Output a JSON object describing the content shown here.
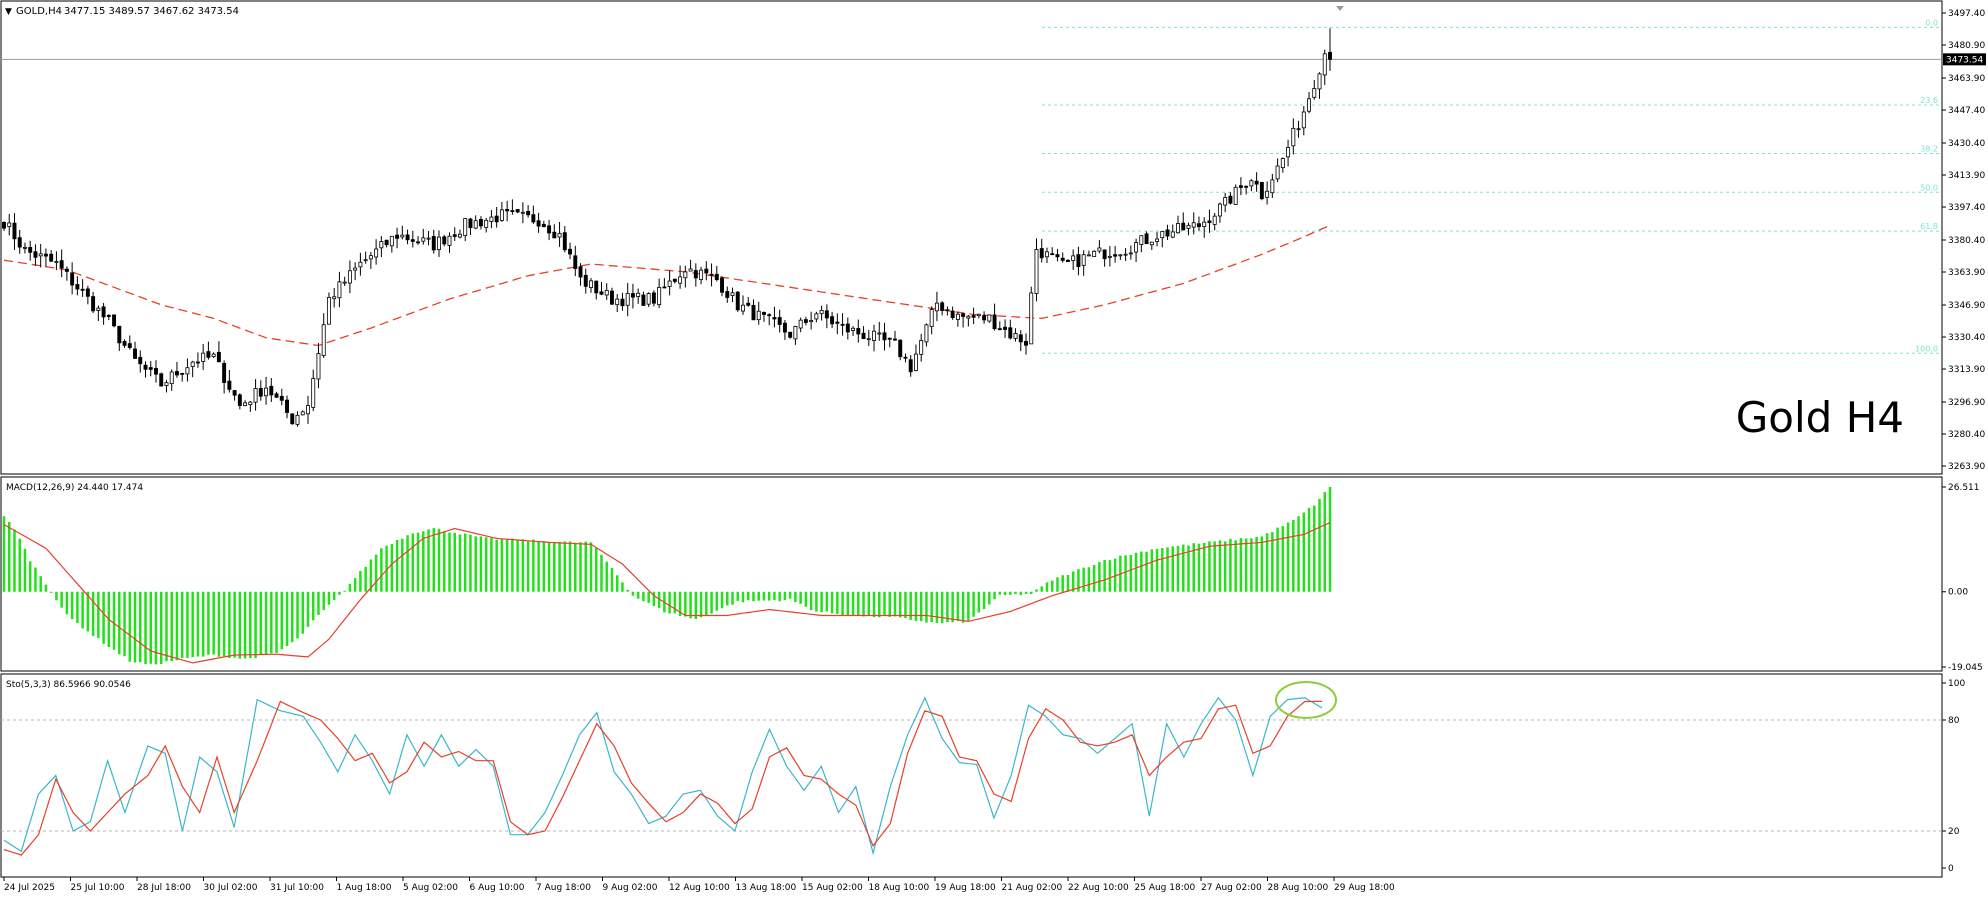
{
  "header": {
    "symbol_label": "GOLD,H4",
    "ohlc_label": "3477.15 3489.57 3467.62 3473.54",
    "watermark": "Gold H4"
  },
  "colors": {
    "bull_body": "#ffffff",
    "bear_body": "#000000",
    "candle_outline": "#000000",
    "ma_line": "#e8402a",
    "fib_line": "#7fe3cf",
    "macd_hist": "#22e01a",
    "macd_signal": "#e8402a",
    "stoch_main": "#3bb6c9",
    "stoch_signal": "#e8402a",
    "stoch_level": "#b5b5b5",
    "highlight_ellipse": "#8fcc3a",
    "grid_border": "#000000",
    "price_tag_bg": "#000000",
    "price_tag_fg": "#ffffff"
  },
  "chart_data": [
    {
      "type": "candlestick",
      "panel": "price",
      "title": "GOLD,H4",
      "ylim": [
        3263.9,
        3500.0
      ],
      "y_ticks": [
        "3497.40",
        "3480.90",
        "3463.90",
        "3447.40",
        "3430.40",
        "3413.90",
        "3397.40",
        "3380.40",
        "3363.90",
        "3346.90",
        "3330.40",
        "3313.90",
        "3296.90",
        "3280.40",
        "3263.90"
      ],
      "current_price_label": "3473.54",
      "current_price": 3473.54,
      "last_bar": {
        "open": 3477.15,
        "high": 3489.57,
        "low": 3467.62,
        "close": 3473.54
      },
      "moving_average_style": "dashed",
      "fib_levels": [
        {
          "label": "0.0",
          "price": 3490.0
        },
        {
          "label": "23.6",
          "price": 3450.0
        },
        {
          "label": "38.2",
          "price": 3425.0
        },
        {
          "label": "50.0",
          "price": 3405.0
        },
        {
          "label": "61.8",
          "price": 3385.0
        },
        {
          "label": "100.0",
          "price": 3322.0
        }
      ],
      "close_keypoints": [
        [
          0,
          3390
        ],
        [
          4,
          3375
        ],
        [
          10,
          3368
        ],
        [
          20,
          3338
        ],
        [
          25,
          3318
        ],
        [
          30,
          3306
        ],
        [
          36,
          3318
        ],
        [
          40,
          3320
        ],
        [
          45,
          3295
        ],
        [
          50,
          3305
        ],
        [
          55,
          3288
        ],
        [
          58,
          3296
        ],
        [
          62,
          3350
        ],
        [
          68,
          3368
        ],
        [
          75,
          3383
        ],
        [
          82,
          3378
        ],
        [
          88,
          3388
        ],
        [
          95,
          3393
        ],
        [
          102,
          3391
        ],
        [
          106,
          3383
        ],
        [
          110,
          3360
        ],
        [
          116,
          3350
        ],
        [
          124,
          3350
        ],
        [
          130,
          3366
        ],
        [
          136,
          3360
        ],
        [
          140,
          3347
        ],
        [
          146,
          3338
        ],
        [
          150,
          3332
        ],
        [
          155,
          3343
        ],
        [
          160,
          3335
        ],
        [
          166,
          3330
        ],
        [
          170,
          3326
        ],
        [
          173,
          3315
        ],
        [
          178,
          3348
        ],
        [
          182,
          3341
        ],
        [
          188,
          3340
        ],
        [
          192,
          3332
        ],
        [
          195,
          3328
        ],
        [
          197,
          3376
        ],
        [
          202,
          3367
        ],
        [
          208,
          3373
        ],
        [
          214,
          3376
        ],
        [
          220,
          3383
        ],
        [
          228,
          3388
        ],
        [
          233,
          3399
        ],
        [
          238,
          3413
        ],
        [
          240,
          3404
        ],
        [
          244,
          3422
        ],
        [
          248,
          3447
        ],
        [
          250,
          3462
        ],
        [
          252,
          3477
        ],
        [
          253,
          3473.54
        ]
      ],
      "ma_keypoints": [
        [
          0,
          3370
        ],
        [
          12,
          3365
        ],
        [
          30,
          3347
        ],
        [
          40,
          3340
        ],
        [
          50,
          3330
        ],
        [
          60,
          3326
        ],
        [
          70,
          3335
        ],
        [
          85,
          3350
        ],
        [
          100,
          3362
        ],
        [
          112,
          3368
        ],
        [
          130,
          3364
        ],
        [
          150,
          3356
        ],
        [
          170,
          3348
        ],
        [
          185,
          3342
        ],
        [
          198,
          3340
        ],
        [
          210,
          3347
        ],
        [
          225,
          3358
        ],
        [
          240,
          3373
        ],
        [
          248,
          3382
        ],
        [
          253,
          3388
        ]
      ]
    },
    {
      "type": "histogram",
      "panel": "macd",
      "title": "MACD(12,26,9) 24.440 17.474",
      "params": "12,26,9",
      "current_macd": 24.44,
      "current_signal": 17.474,
      "ylim": [
        -19.045,
        26.511
      ],
      "y_ticks": [
        "26.511",
        "0.00",
        "-19.045"
      ],
      "hist_keypoints": [
        [
          0,
          19
        ],
        [
          2,
          16
        ],
        [
          5,
          8
        ],
        [
          8,
          2
        ],
        [
          12,
          -6
        ],
        [
          18,
          -12
        ],
        [
          24,
          -17.5
        ],
        [
          28,
          -18.5
        ],
        [
          34,
          -17
        ],
        [
          40,
          -16
        ],
        [
          46,
          -17
        ],
        [
          52,
          -15.5
        ],
        [
          56,
          -12
        ],
        [
          60,
          -6
        ],
        [
          64,
          -1
        ],
        [
          68,
          5
        ],
        [
          72,
          11
        ],
        [
          78,
          15
        ],
        [
          82,
          16
        ],
        [
          86,
          15
        ],
        [
          92,
          13.5
        ],
        [
          100,
          13
        ],
        [
          108,
          12.5
        ],
        [
          112,
          12.5
        ],
        [
          116,
          6
        ],
        [
          120,
          -1
        ],
        [
          126,
          -5
        ],
        [
          132,
          -7
        ],
        [
          140,
          -2.5
        ],
        [
          150,
          -2
        ],
        [
          155,
          -5
        ],
        [
          162,
          -6
        ],
        [
          170,
          -6.5
        ],
        [
          178,
          -8
        ],
        [
          184,
          -7.5
        ],
        [
          190,
          -1
        ],
        [
          196,
          -0.5
        ],
        [
          200,
          3
        ],
        [
          210,
          8
        ],
        [
          220,
          11
        ],
        [
          230,
          12.5
        ],
        [
          240,
          14
        ],
        [
          246,
          18
        ],
        [
          250,
          22
        ],
        [
          253,
          26.5
        ]
      ],
      "signal_keypoints": [
        [
          0,
          17
        ],
        [
          8,
          11
        ],
        [
          14,
          2
        ],
        [
          20,
          -7
        ],
        [
          28,
          -15
        ],
        [
          36,
          -18
        ],
        [
          44,
          -16
        ],
        [
          52,
          -15.8
        ],
        [
          58,
          -16.5
        ],
        [
          62,
          -12
        ],
        [
          68,
          -2
        ],
        [
          74,
          7
        ],
        [
          80,
          13.5
        ],
        [
          86,
          16
        ],
        [
          94,
          13.5
        ],
        [
          104,
          12.5
        ],
        [
          112,
          12
        ],
        [
          118,
          7
        ],
        [
          124,
          -1
        ],
        [
          130,
          -6
        ],
        [
          138,
          -6
        ],
        [
          146,
          -4.5
        ],
        [
          156,
          -6
        ],
        [
          166,
          -6
        ],
        [
          176,
          -6
        ],
        [
          184,
          -7.5
        ],
        [
          192,
          -5
        ],
        [
          200,
          -1
        ],
        [
          210,
          3
        ],
        [
          220,
          8
        ],
        [
          230,
          11.5
        ],
        [
          240,
          12.5
        ],
        [
          248,
          14.5
        ],
        [
          253,
          17.5
        ]
      ]
    },
    {
      "type": "line",
      "panel": "stochastic",
      "title": "Sto(5,3,3) 86.5966 90.0546",
      "params": "5,3,3",
      "current_main": 86.5966,
      "current_signal": 90.0546,
      "ylim": [
        0,
        100
      ],
      "y_ticks": [
        "100",
        "80",
        "20",
        "0"
      ],
      "levels": [
        80,
        20
      ],
      "main_keypoints": [
        [
          0,
          15
        ],
        [
          3,
          9
        ],
        [
          6,
          40
        ],
        [
          9,
          50
        ],
        [
          12,
          20
        ],
        [
          15,
          25
        ],
        [
          18,
          58
        ],
        [
          21,
          30
        ],
        [
          25,
          66
        ],
        [
          28,
          62
        ],
        [
          31,
          20
        ],
        [
          34,
          60
        ],
        [
          37,
          52
        ],
        [
          40,
          22
        ],
        [
          44,
          91
        ],
        [
          48,
          85
        ],
        [
          52,
          82
        ],
        [
          55,
          68
        ],
        [
          58,
          52
        ],
        [
          61,
          72
        ],
        [
          64,
          58
        ],
        [
          67,
          40
        ],
        [
          70,
          72
        ],
        [
          73,
          55
        ],
        [
          76,
          72
        ],
        [
          79,
          55
        ],
        [
          82,
          64
        ],
        [
          85,
          55
        ],
        [
          88,
          18
        ],
        [
          91,
          18
        ],
        [
          94,
          30
        ],
        [
          97,
          50
        ],
        [
          100,
          72
        ],
        [
          103,
          84
        ],
        [
          106,
          52
        ],
        [
          109,
          40
        ],
        [
          112,
          24
        ],
        [
          115,
          28
        ],
        [
          118,
          40
        ],
        [
          121,
          42
        ],
        [
          124,
          28
        ],
        [
          127,
          20
        ],
        [
          130,
          52
        ],
        [
          133,
          75
        ],
        [
          136,
          55
        ],
        [
          139,
          42
        ],
        [
          142,
          55
        ],
        [
          145,
          30
        ],
        [
          148,
          44
        ],
        [
          151,
          8
        ],
        [
          154,
          44
        ],
        [
          157,
          72
        ],
        [
          160,
          92
        ],
        [
          163,
          70
        ],
        [
          166,
          57
        ],
        [
          169,
          56
        ],
        [
          172,
          27
        ],
        [
          175,
          50
        ],
        [
          178,
          88
        ],
        [
          181,
          82
        ],
        [
          184,
          72
        ],
        [
          187,
          70
        ],
        [
          190,
          62
        ],
        [
          193,
          70
        ],
        [
          196,
          78
        ],
        [
          199,
          28
        ],
        [
          202,
          78
        ],
        [
          205,
          60
        ],
        [
          208,
          78
        ],
        [
          211,
          92
        ],
        [
          214,
          80
        ],
        [
          217,
          50
        ],
        [
          220,
          82
        ],
        [
          223,
          91
        ],
        [
          226,
          92
        ],
        [
          229,
          86.6
        ]
      ],
      "signal_keypoints": [
        [
          0,
          10
        ],
        [
          3,
          7
        ],
        [
          6,
          18
        ],
        [
          9,
          48
        ],
        [
          12,
          30
        ],
        [
          15,
          20
        ],
        [
          18,
          30
        ],
        [
          21,
          40
        ],
        [
          25,
          50
        ],
        [
          28,
          66
        ],
        [
          31,
          44
        ],
        [
          34,
          30
        ],
        [
          37,
          60
        ],
        [
          40,
          30
        ],
        [
          44,
          58
        ],
        [
          48,
          90
        ],
        [
          52,
          84
        ],
        [
          55,
          80
        ],
        [
          58,
          70
        ],
        [
          61,
          58
        ],
        [
          64,
          62
        ],
        [
          67,
          46
        ],
        [
          70,
          52
        ],
        [
          73,
          68
        ],
        [
          76,
          60
        ],
        [
          79,
          63
        ],
        [
          82,
          58
        ],
        [
          85,
          58
        ],
        [
          88,
          25
        ],
        [
          91,
          18
        ],
        [
          94,
          20
        ],
        [
          97,
          38
        ],
        [
          100,
          58
        ],
        [
          103,
          78
        ],
        [
          106,
          66
        ],
        [
          109,
          46
        ],
        [
          112,
          35
        ],
        [
          115,
          25
        ],
        [
          118,
          30
        ],
        [
          121,
          40
        ],
        [
          124,
          35
        ],
        [
          127,
          24
        ],
        [
          130,
          32
        ],
        [
          133,
          60
        ],
        [
          136,
          65
        ],
        [
          139,
          50
        ],
        [
          142,
          48
        ],
        [
          145,
          40
        ],
        [
          148,
          34
        ],
        [
          151,
          12
        ],
        [
          154,
          24
        ],
        [
          157,
          62
        ],
        [
          160,
          85
        ],
        [
          163,
          82
        ],
        [
          166,
          60
        ],
        [
          169,
          58
        ],
        [
          172,
          40
        ],
        [
          175,
          36
        ],
        [
          178,
          70
        ],
        [
          181,
          86
        ],
        [
          184,
          80
        ],
        [
          187,
          68
        ],
        [
          190,
          66
        ],
        [
          193,
          68
        ],
        [
          196,
          72
        ],
        [
          199,
          50
        ],
        [
          202,
          60
        ],
        [
          205,
          68
        ],
        [
          208,
          70
        ],
        [
          211,
          86
        ],
        [
          214,
          88
        ],
        [
          217,
          62
        ],
        [
          220,
          66
        ],
        [
          223,
          82
        ],
        [
          226,
          90
        ],
        [
          229,
          90.05
        ]
      ],
      "highlight_note": "ellipse around latest overbought crossover"
    }
  ],
  "x_axis": {
    "labels": [
      "24 Jul 2025",
      "25 Jul 10:00",
      "28 Jul 18:00",
      "30 Jul 02:00",
      "31 Jul 10:00",
      "1 Aug 18:00",
      "5 Aug 02:00",
      "6 Aug 10:00",
      "7 Aug 18:00",
      "9 Aug 02:00",
      "12 Aug 10:00",
      "13 Aug 18:00",
      "15 Aug 02:00",
      "18 Aug 10:00",
      "19 Aug 18:00",
      "21 Aug 02:00",
      "22 Aug 10:00",
      "25 Aug 18:00",
      "27 Aug 02:00",
      "28 Aug 10:00",
      "29 Aug 18:00"
    ]
  }
}
